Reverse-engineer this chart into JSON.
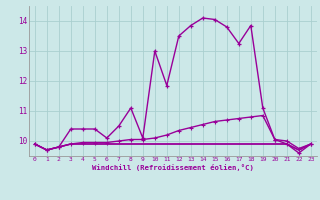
{
  "xlabel": "Windchill (Refroidissement éolien,°C)",
  "x": [
    0,
    1,
    2,
    3,
    4,
    5,
    6,
    7,
    8,
    9,
    10,
    11,
    12,
    13,
    14,
    15,
    16,
    17,
    18,
    19,
    20,
    21,
    22,
    23
  ],
  "line1": [
    9.9,
    9.7,
    9.8,
    10.4,
    10.4,
    10.4,
    10.1,
    10.5,
    11.1,
    10.1,
    13.0,
    11.85,
    13.5,
    13.85,
    14.1,
    14.05,
    13.8,
    13.25,
    13.85,
    11.1,
    10.05,
    9.9,
    9.6,
    9.9
  ],
  "line2": [
    9.9,
    9.7,
    9.8,
    9.9,
    9.95,
    9.95,
    9.95,
    10.0,
    10.05,
    10.05,
    10.1,
    10.2,
    10.35,
    10.45,
    10.55,
    10.65,
    10.7,
    10.75,
    10.8,
    10.85,
    10.05,
    10.0,
    9.75,
    9.9
  ],
  "line3": [
    9.9,
    9.7,
    9.8,
    9.9,
    9.9,
    9.9,
    9.9,
    9.9,
    9.9,
    9.9,
    9.9,
    9.9,
    9.9,
    9.9,
    9.9,
    9.9,
    9.9,
    9.9,
    9.9,
    9.9,
    9.9,
    9.9,
    9.7,
    9.9
  ],
  "line4": [
    9.9,
    9.7,
    9.8,
    9.9,
    9.9,
    9.9,
    9.9,
    9.9,
    9.9,
    9.9,
    9.9,
    9.9,
    9.9,
    9.9,
    9.9,
    9.9,
    9.9,
    9.9,
    9.9,
    9.9,
    9.9,
    9.9,
    9.7,
    9.9
  ],
  "line_color": "#990099",
  "bg_color": "#cce8e8",
  "grid_color": "#aacfcf",
  "ylim": [
    9.5,
    14.5
  ],
  "yticks": [
    10,
    11,
    12,
    13,
    14
  ],
  "xlim": [
    -0.5,
    23.5
  ],
  "xticks": [
    0,
    1,
    2,
    3,
    4,
    5,
    6,
    7,
    8,
    9,
    10,
    11,
    12,
    13,
    14,
    15,
    16,
    17,
    18,
    19,
    20,
    21,
    22,
    23
  ]
}
